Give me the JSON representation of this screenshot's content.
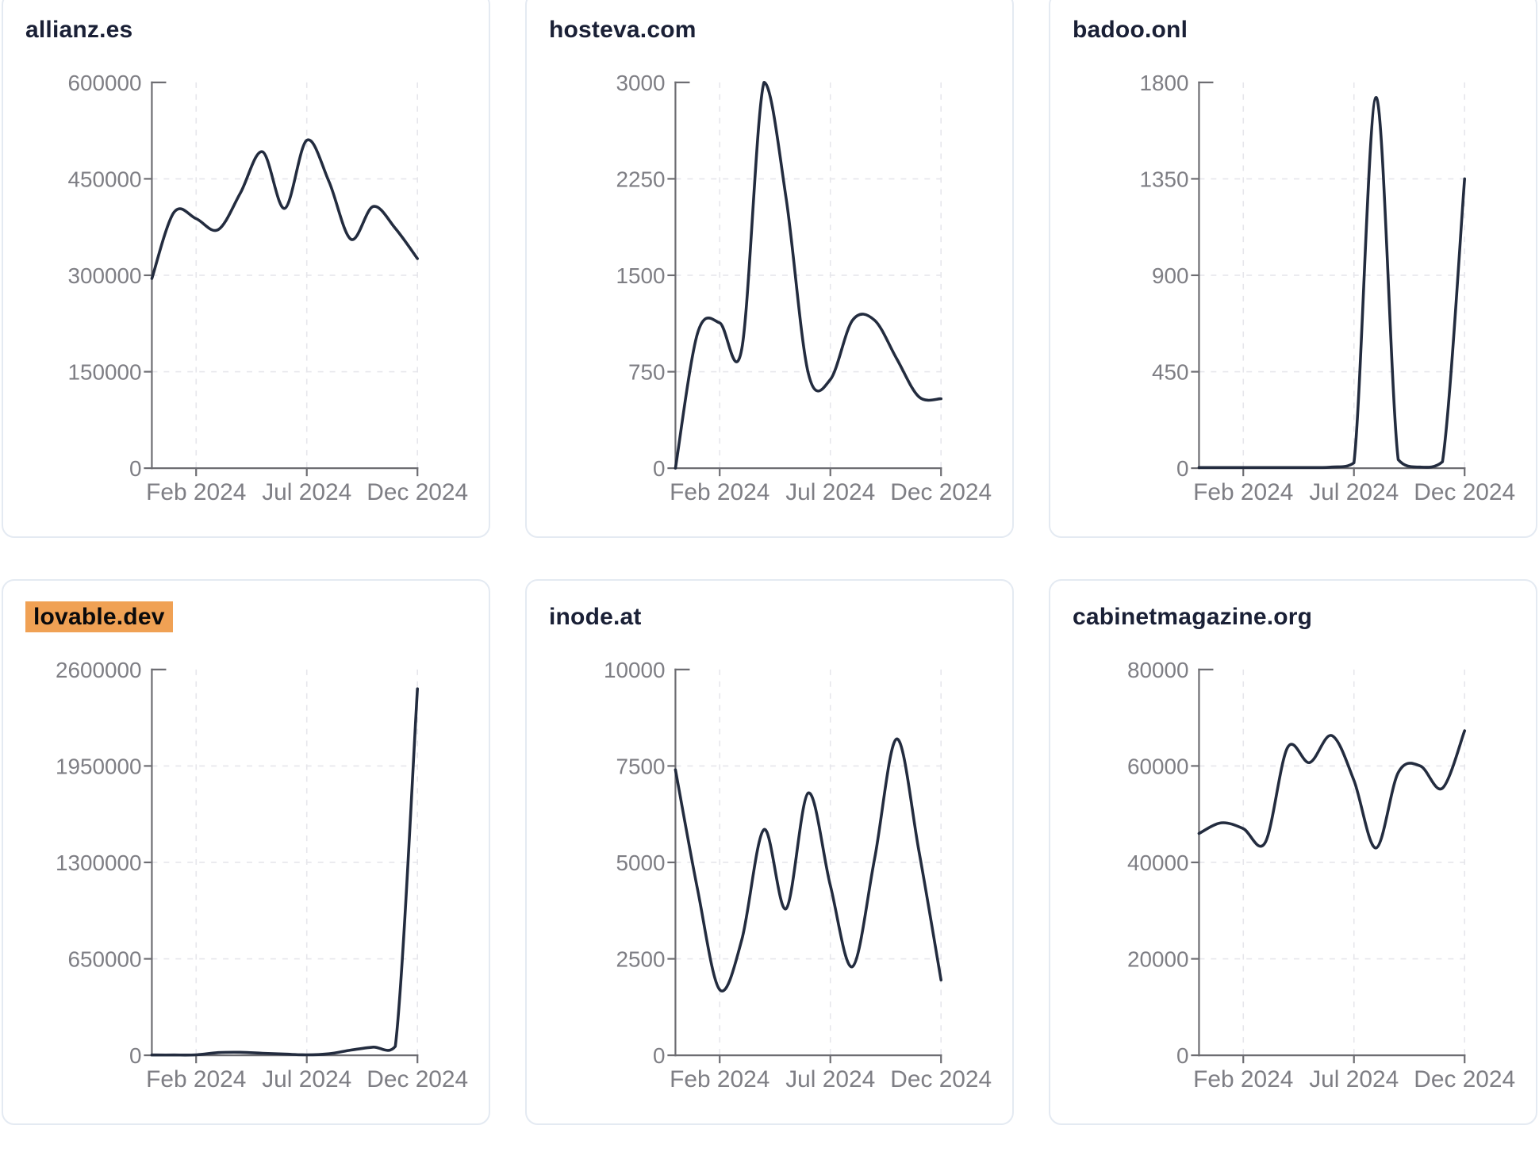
{
  "styles": {
    "page_bg": "#ffffff",
    "card_bg": "#ffffff",
    "card_border": "#e4eaf2",
    "title_color": "#1a2036",
    "highlight_bg": "#f0a154",
    "highlight_text": "#0a0a0c",
    "line_color": "#232c3f",
    "axis_color": "#6d6d72",
    "tick_label_color": "#7e7e84",
    "grid_color": "#e6e6eb"
  },
  "chart_data": [
    {
      "type": "line",
      "title": "allianz.es",
      "highlighted": false,
      "values": [
        295000,
        398000,
        388000,
        371000,
        428000,
        492000,
        404000,
        510000,
        446000,
        356000,
        407000,
        373000,
        326000
      ],
      "ylim": [
        0,
        600000
      ],
      "yticks": [
        0,
        150000,
        300000,
        450000,
        600000
      ],
      "ytick_labels": [
        "0",
        "150000",
        "300000",
        "450000",
        "600000"
      ],
      "x_labels": [
        "Feb 2024",
        "Jul 2024",
        "Dec 2024"
      ],
      "x_tick_indices": [
        2,
        7,
        12
      ],
      "grid": "dashed",
      "legend": "none"
    },
    {
      "type": "line",
      "title": "hosteva.com",
      "highlighted": false,
      "values": [
        0,
        1050,
        1130,
        930,
        3000,
        2100,
        740,
        690,
        1150,
        1150,
        850,
        555,
        540
      ],
      "ylim": [
        0,
        3000
      ],
      "yticks": [
        0,
        750,
        1500,
        2250,
        3000
      ],
      "ytick_labels": [
        "0",
        "750",
        "1500",
        "2250",
        "3000"
      ],
      "x_labels": [
        "Feb 2024",
        "Jul 2024",
        "Dec 2024"
      ],
      "x_tick_indices": [
        2,
        7,
        12
      ],
      "grid": "dashed",
      "legend": "none"
    },
    {
      "type": "line",
      "title": "badoo.onl",
      "highlighted": false,
      "values": [
        3,
        3,
        3,
        3,
        3,
        3,
        5,
        25,
        1730,
        40,
        5,
        30,
        1350
      ],
      "ylim": [
        0,
        1800
      ],
      "yticks": [
        0,
        450,
        900,
        1350,
        1800
      ],
      "ytick_labels": [
        "0",
        "450",
        "900",
        "1350",
        "1800"
      ],
      "x_labels": [
        "Feb 2024",
        "Jul 2024",
        "Dec 2024"
      ],
      "x_tick_indices": [
        2,
        7,
        12
      ],
      "grid": "dashed",
      "legend": "none"
    },
    {
      "type": "line",
      "title": "lovable.dev",
      "highlighted": true,
      "values": [
        2000,
        2000,
        3000,
        18000,
        20000,
        14000,
        8000,
        3000,
        10000,
        35000,
        55000,
        60000,
        2470000
      ],
      "ylim": [
        0,
        2600000
      ],
      "yticks": [
        0,
        650000,
        1300000,
        1950000,
        2600000
      ],
      "ytick_labels": [
        "0",
        "650000",
        "1300000",
        "1950000",
        "2600000"
      ],
      "x_labels": [
        "Feb 2024",
        "Jul 2024",
        "Dec 2024"
      ],
      "x_tick_indices": [
        2,
        7,
        12
      ],
      "grid": "dashed",
      "legend": "none"
    },
    {
      "type": "line",
      "title": "inode.at",
      "highlighted": false,
      "values": [
        7400,
        4300,
        1700,
        3000,
        5850,
        3800,
        6800,
        4400,
        2300,
        5100,
        8200,
        5300,
        1950
      ],
      "ylim": [
        0,
        10000
      ],
      "yticks": [
        0,
        2500,
        5000,
        7500,
        10000
      ],
      "ytick_labels": [
        "0",
        "2500",
        "5000",
        "7500",
        "10000"
      ],
      "x_labels": [
        "Feb 2024",
        "Jul 2024",
        "Dec 2024"
      ],
      "x_tick_indices": [
        2,
        7,
        12
      ],
      "grid": "dashed",
      "legend": "none"
    },
    {
      "type": "line",
      "title": "cabinetmagazine.org",
      "highlighted": false,
      "values": [
        46000,
        48200,
        47000,
        44200,
        63800,
        60700,
        66300,
        57000,
        43000,
        58600,
        60000,
        55400,
        67300
      ],
      "ylim": [
        0,
        80000
      ],
      "yticks": [
        0,
        20000,
        40000,
        60000,
        80000
      ],
      "ytick_labels": [
        "0",
        "20000",
        "40000",
        "60000",
        "80000"
      ],
      "x_labels": [
        "Feb 2024",
        "Jul 2024",
        "Dec 2024"
      ],
      "x_tick_indices": [
        2,
        7,
        12
      ],
      "grid": "dashed",
      "legend": "none"
    }
  ]
}
